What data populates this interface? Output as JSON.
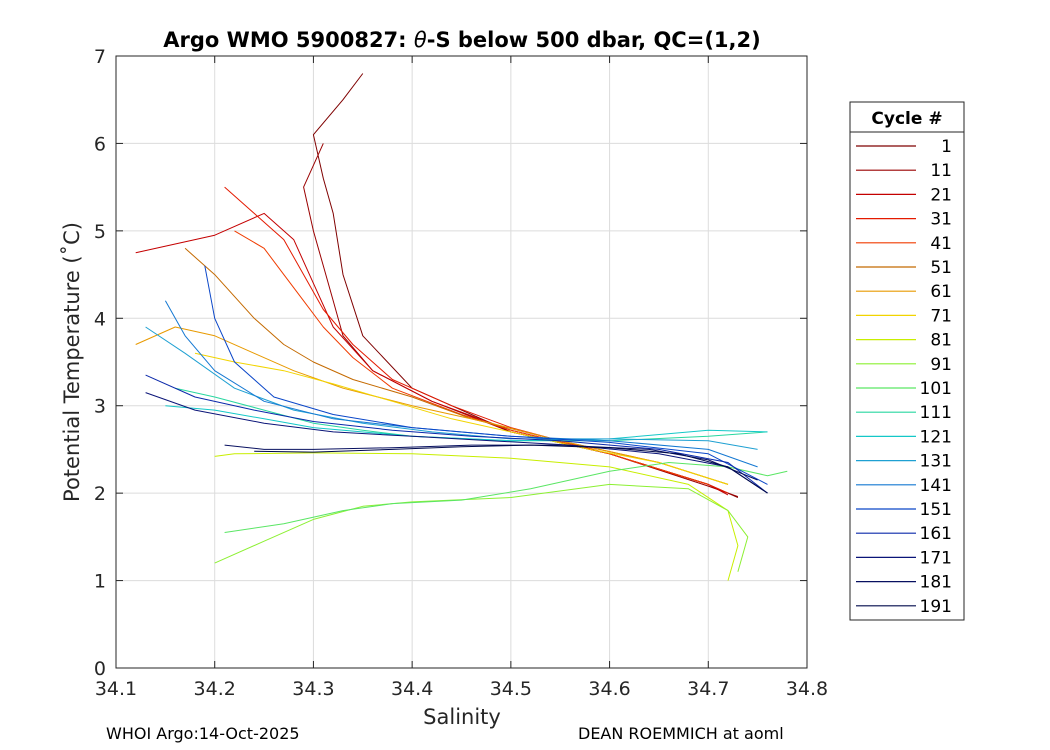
{
  "chart_data": {
    "type": "line",
    "title": "Argo WMO 5900827: θ-S below 500 dbar,  QC=(1,2)",
    "title_parts": {
      "prefix": "Argo WMO 5900827: ",
      "symbol": "θ",
      "suffix": "-S below 500 dbar,  QC=(1,2)"
    },
    "xlabel": "Salinity",
    "ylabel": "Potential Temperature (˚C)",
    "xlim": [
      34.1,
      34.8
    ],
    "ylim": [
      0,
      7
    ],
    "xticks": [
      "34.1",
      "34.2",
      "34.3",
      "34.4",
      "34.5",
      "34.6",
      "34.7",
      "34.8"
    ],
    "yticks": [
      "0",
      "1",
      "2",
      "3",
      "4",
      "5",
      "6",
      "7"
    ],
    "grid": true,
    "legend": {
      "title": "Cycle #",
      "placement": "right",
      "entries": [
        "1",
        "11",
        "21",
        "31",
        "41",
        "51",
        "61",
        "71",
        "81",
        "91",
        "101",
        "111",
        "121",
        "131",
        "141",
        "151",
        "161",
        "171",
        "181",
        "191"
      ]
    },
    "series_colors": [
      "#7f0000",
      "#9a0000",
      "#c40000",
      "#e41a00",
      "#f03c00",
      "#c46a00",
      "#e89a00",
      "#f2d400",
      "#c8ee00",
      "#8cf032",
      "#5ae664",
      "#28d7a0",
      "#14c8c8",
      "#1ea0d2",
      "#1478d2",
      "#0a46c8",
      "#0a28aa",
      "#0a1478",
      "#081060",
      "#000a4c"
    ],
    "series": [
      {
        "name": "1",
        "x": [
          34.35,
          34.33,
          34.3,
          34.31,
          34.32,
          34.33,
          34.35,
          34.4,
          34.5,
          34.6,
          34.7,
          34.73
        ],
        "y": [
          6.8,
          6.5,
          6.1,
          5.6,
          5.2,
          4.5,
          3.8,
          3.2,
          2.7,
          2.45,
          2.1,
          1.95
        ]
      },
      {
        "name": "11",
        "x": [
          34.31,
          34.29,
          34.3,
          34.31,
          34.32,
          34.33,
          34.36,
          34.42,
          34.5,
          34.6,
          34.7,
          34.73
        ],
        "y": [
          6.0,
          5.5,
          5.0,
          4.6,
          4.2,
          3.8,
          3.4,
          3.05,
          2.7,
          2.45,
          2.08,
          1.96
        ]
      },
      {
        "name": "21",
        "x": [
          34.12,
          34.2,
          34.25,
          34.28,
          34.3,
          34.32,
          34.36,
          34.42,
          34.5,
          34.6,
          34.7,
          34.72
        ],
        "y": [
          4.75,
          4.95,
          5.2,
          4.9,
          4.4,
          3.9,
          3.4,
          3.05,
          2.72,
          2.45,
          2.1,
          1.98
        ]
      },
      {
        "name": "31",
        "x": [
          34.21,
          34.24,
          34.27,
          34.29,
          34.31,
          34.34,
          34.38,
          34.44,
          34.5,
          34.6,
          34.7,
          34.72
        ],
        "y": [
          5.5,
          5.2,
          4.9,
          4.5,
          4.1,
          3.7,
          3.3,
          3.0,
          2.75,
          2.45,
          2.1,
          2.0
        ]
      },
      {
        "name": "41",
        "x": [
          34.22,
          34.25,
          34.27,
          34.29,
          34.31,
          34.34,
          34.38,
          34.45,
          34.5,
          34.6,
          34.7
        ],
        "y": [
          5.0,
          4.8,
          4.5,
          4.2,
          3.9,
          3.55,
          3.2,
          2.9,
          2.72,
          2.45,
          2.1
        ]
      },
      {
        "name": "51",
        "x": [
          34.17,
          34.2,
          34.24,
          34.27,
          34.3,
          34.34,
          34.4,
          34.46,
          34.55,
          34.65,
          34.72
        ],
        "y": [
          4.8,
          4.5,
          4.0,
          3.7,
          3.5,
          3.3,
          3.1,
          2.85,
          2.6,
          2.35,
          2.1
        ]
      },
      {
        "name": "61",
        "x": [
          34.12,
          34.16,
          34.2,
          34.24,
          34.28,
          34.33,
          34.4,
          34.48,
          34.55,
          34.65,
          34.72
        ],
        "y": [
          3.7,
          3.9,
          3.8,
          3.6,
          3.4,
          3.2,
          3.0,
          2.8,
          2.6,
          2.35,
          2.1
        ]
      },
      {
        "name": "71",
        "x": [
          34.18,
          34.22,
          34.27,
          34.32,
          34.38,
          34.44,
          34.5,
          34.58,
          34.65,
          34.72
        ],
        "y": [
          3.6,
          3.5,
          3.4,
          3.25,
          3.05,
          2.85,
          2.7,
          2.5,
          2.35,
          2.1
        ]
      },
      {
        "name": "81",
        "x": [
          34.2,
          34.22,
          34.3,
          34.4,
          34.5,
          34.6,
          34.68,
          34.72,
          34.73,
          34.72
        ],
        "y": [
          2.42,
          2.45,
          2.46,
          2.45,
          2.4,
          2.3,
          2.1,
          1.8,
          1.4,
          1.0
        ]
      },
      {
        "name": "91",
        "x": [
          34.2,
          34.25,
          34.3,
          34.35,
          34.4,
          34.5,
          34.6,
          34.68,
          34.72,
          34.74,
          34.73
        ],
        "y": [
          1.2,
          1.45,
          1.7,
          1.85,
          1.9,
          1.95,
          2.1,
          2.05,
          1.8,
          1.5,
          1.1
        ]
      },
      {
        "name": "101",
        "x": [
          34.21,
          34.27,
          34.33,
          34.38,
          34.45,
          34.52,
          34.6,
          34.66,
          34.72,
          34.76,
          34.78
        ],
        "y": [
          1.55,
          1.65,
          1.8,
          1.88,
          1.92,
          2.05,
          2.25,
          2.35,
          2.3,
          2.2,
          2.25
        ]
      },
      {
        "name": "111",
        "x": [
          34.16,
          34.2,
          34.25,
          34.3,
          34.35,
          34.4,
          34.5,
          34.6,
          34.7,
          34.76
        ],
        "y": [
          3.2,
          3.1,
          2.95,
          2.8,
          2.72,
          2.65,
          2.6,
          2.6,
          2.65,
          2.7
        ]
      },
      {
        "name": "121",
        "x": [
          34.15,
          34.2,
          34.25,
          34.3,
          34.4,
          34.5,
          34.6,
          34.7,
          34.76
        ],
        "y": [
          3.0,
          2.95,
          2.85,
          2.75,
          2.65,
          2.6,
          2.62,
          2.72,
          2.7
        ]
      },
      {
        "name": "131",
        "x": [
          34.13,
          34.17,
          34.22,
          34.28,
          34.35,
          34.42,
          34.5,
          34.6,
          34.7,
          34.75
        ],
        "y": [
          3.9,
          3.6,
          3.2,
          2.95,
          2.8,
          2.7,
          2.62,
          2.62,
          2.6,
          2.5
        ]
      },
      {
        "name": "141",
        "x": [
          34.15,
          34.17,
          34.2,
          34.25,
          34.32,
          34.4,
          34.5,
          34.6,
          34.7,
          34.75
        ],
        "y": [
          4.2,
          3.8,
          3.4,
          3.05,
          2.85,
          2.75,
          2.65,
          2.6,
          2.5,
          2.3
        ]
      },
      {
        "name": "151",
        "x": [
          34.19,
          34.2,
          34.22,
          34.26,
          34.32,
          34.4,
          34.5,
          34.6,
          34.7,
          34.76
        ],
        "y": [
          4.6,
          4.0,
          3.5,
          3.1,
          2.9,
          2.75,
          2.65,
          2.58,
          2.45,
          2.1
        ]
      },
      {
        "name": "161",
        "x": [
          34.13,
          34.18,
          34.24,
          34.3,
          34.38,
          34.46,
          34.55,
          34.65,
          34.72,
          34.76
        ],
        "y": [
          3.35,
          3.1,
          2.95,
          2.82,
          2.72,
          2.65,
          2.6,
          2.5,
          2.35,
          2.0
        ]
      },
      {
        "name": "171",
        "x": [
          34.13,
          34.18,
          34.25,
          34.32,
          34.4,
          34.48,
          34.56,
          34.65,
          34.72,
          34.76
        ],
        "y": [
          3.15,
          2.95,
          2.8,
          2.7,
          2.65,
          2.6,
          2.55,
          2.45,
          2.3,
          2.0
        ]
      },
      {
        "name": "181",
        "x": [
          34.21,
          34.25,
          34.3,
          34.38,
          34.46,
          34.55,
          34.64,
          34.7,
          34.75
        ],
        "y": [
          2.55,
          2.5,
          2.5,
          2.52,
          2.55,
          2.55,
          2.5,
          2.38,
          2.15
        ]
      },
      {
        "name": "191",
        "x": [
          34.24,
          34.3,
          34.38,
          34.45,
          34.52,
          34.6,
          34.67,
          34.72,
          34.76
        ],
        "y": [
          2.48,
          2.47,
          2.5,
          2.53,
          2.55,
          2.52,
          2.45,
          2.3,
          2.0
        ]
      }
    ]
  },
  "footer": {
    "left": "WHOI Argo:14-Oct-2025",
    "right": "DEAN ROEMMICH at aoml"
  }
}
